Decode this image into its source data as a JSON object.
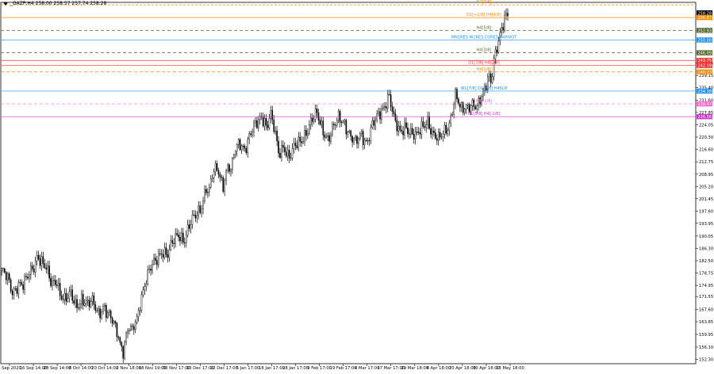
{
  "header": {
    "symbol_info": "_GAZP,H4  258.00 258.57 257.74 258.28"
  },
  "chart_data": {
    "type": "candlestick",
    "symbol": "_GAZP",
    "timeframe": "H4",
    "ohlc_header": [
      258.0,
      258.57,
      257.74,
      258.28
    ],
    "ylim": [
      151.0,
      261.5
    ],
    "y_ticks": [
      152.3,
      156.1,
      159.95,
      163.85,
      167.6,
      171.55,
      174.95,
      178.75,
      182.5,
      186.3,
      190.05,
      193.95,
      197.6,
      201.45,
      205.2,
      208.95,
      212.75,
      216.6,
      220.3,
      224.05,
      227.85,
      231.6,
      235.4,
      239.15,
      242.95
    ],
    "x_labels": [
      "4 Sep 2020",
      "16 Sep 14:00",
      "28 Sep 14:00",
      "8 Oct 14:00",
      "20 Oct 14:00",
      "2 Nov 18:00",
      "18 Nov 19:00",
      "30 Nov 17:00",
      "10 Dec 17:00",
      "22 Dec 17:00",
      "5 Jan 17:00",
      "18 Jan 17:00",
      "28 Jan 17:00",
      "9 Feb 17:00",
      "19 Feb 17:00",
      "4 Mar 17:00",
      "17 Mar 17:00",
      "29 Mar 18:00",
      "8 Apr 18:00",
      "20 Apr 18:00",
      "30 Apr 18:00",
      "13 May 18:00"
    ],
    "price_path": [
      [
        0,
        179.5
      ],
      [
        2,
        177
      ],
      [
        4,
        172.5
      ],
      [
        6,
        176
      ],
      [
        8,
        175
      ],
      [
        10,
        178
      ],
      [
        12,
        181.5
      ],
      [
        13,
        185
      ],
      [
        14,
        183
      ],
      [
        16,
        180
      ],
      [
        18,
        175
      ],
      [
        20,
        177
      ],
      [
        21,
        173
      ],
      [
        23,
        170
      ],
      [
        25,
        172
      ],
      [
        27,
        169
      ],
      [
        29,
        171
      ],
      [
        31,
        168.5
      ],
      [
        33,
        170
      ],
      [
        35,
        167
      ],
      [
        37,
        168.5
      ],
      [
        38,
        166
      ],
      [
        40,
        164
      ],
      [
        42,
        161
      ],
      [
        43,
        157
      ],
      [
        44,
        155
      ],
      [
        45,
        159
      ],
      [
        46,
        162
      ],
      [
        47,
        160
      ],
      [
        48,
        163
      ],
      [
        49,
        165
      ],
      [
        50,
        170
      ],
      [
        52,
        176
      ],
      [
        54,
        180
      ],
      [
        56,
        183
      ],
      [
        58,
        186
      ],
      [
        60,
        184
      ],
      [
        62,
        188
      ],
      [
        64,
        191
      ],
      [
        66,
        189
      ],
      [
        68,
        193
      ],
      [
        70,
        196
      ],
      [
        72,
        199
      ],
      [
        74,
        205
      ],
      [
        75,
        203
      ],
      [
        76,
        208
      ],
      [
        78,
        211
      ],
      [
        80,
        206
      ],
      [
        82,
        212
      ],
      [
        83,
        209
      ],
      [
        84,
        215
      ],
      [
        86,
        219
      ],
      [
        88,
        217
      ],
      [
        90,
        221
      ],
      [
        92,
        224
      ],
      [
        94,
        227
      ],
      [
        95,
        226
      ],
      [
        96,
        223
      ],
      [
        97,
        228
      ],
      [
        98,
        224
      ],
      [
        99,
        221
      ],
      [
        100,
        215
      ],
      [
        102,
        218
      ],
      [
        104,
        214
      ],
      [
        106,
        217
      ],
      [
        108,
        219
      ],
      [
        110,
        222
      ],
      [
        112,
        225
      ],
      [
        114,
        227
      ],
      [
        116,
        223
      ],
      [
        118,
        220
      ],
      [
        120,
        223
      ],
      [
        122,
        226
      ],
      [
        124,
        225
      ],
      [
        126,
        221
      ],
      [
        128,
        218
      ],
      [
        130,
        221
      ],
      [
        132,
        219
      ],
      [
        134,
        224
      ],
      [
        136,
        226
      ],
      [
        138,
        229
      ],
      [
        140,
        234
      ],
      [
        141,
        230
      ],
      [
        142,
        225
      ],
      [
        144,
        221
      ],
      [
        146,
        224
      ],
      [
        148,
        222
      ],
      [
        150,
        220
      ],
      [
        152,
        223
      ],
      [
        154,
        226
      ],
      [
        156,
        221
      ],
      [
        158,
        219
      ],
      [
        160,
        222
      ],
      [
        162,
        225
      ],
      [
        163,
        229
      ],
      [
        164,
        233
      ],
      [
        165,
        231
      ],
      [
        166,
        228
      ],
      [
        168,
        230
      ],
      [
        170,
        231
      ],
      [
        172,
        229
      ],
      [
        174,
        233
      ],
      [
        175,
        236
      ],
      [
        176,
        240
      ],
      [
        177,
        238
      ],
      [
        178,
        244
      ],
      [
        179,
        247
      ],
      [
        180,
        250
      ],
      [
        181,
        253
      ],
      [
        182,
        257
      ],
      [
        183,
        258.3
      ]
    ],
    "axis_tags": [
      {
        "value": 258.28,
        "color": "#000000"
      },
      {
        "value": 256.87,
        "color": "#ff8c00"
      },
      {
        "value": 252.93,
        "color": "#556b2f"
      },
      {
        "value": 250.0,
        "color": "#1e90ff"
      },
      {
        "value": 246.09,
        "color": "#556b2f"
      },
      {
        "value": 243.75,
        "color": "#ff3333"
      },
      {
        "value": 242.19,
        "color": "#ff3333"
      },
      {
        "value": 240.23,
        "color": "#ff8c00"
      },
      {
        "value": 234.38,
        "color": "#1e90ff"
      },
      {
        "value": 230.47,
        "color": "#ff66cc"
      },
      {
        "value": 226.56,
        "color": "#cc33cc"
      }
    ],
    "levels": [
      {
        "value": 260.74,
        "label": "H4[7/8]",
        "color": "#ff8c00",
        "dash": "3,2"
      },
      {
        "value": 256.87,
        "label": "D1[+1/8] H4[6/8]",
        "color": "#ff8c00",
        "dash": ""
      },
      {
        "value": 252.93,
        "label": "H4[5/8]",
        "color": "#556b2f",
        "dash": "4,3"
      },
      {
        "value": 250.0,
        "label": "MN1RES W1RES D1RES H4PIVOT",
        "color": "#1e90ff",
        "dash": ""
      },
      {
        "value": 246.09,
        "label": "H4[3/8]",
        "color": "#556b2f",
        "dash": "4,3"
      },
      {
        "value": 243.75,
        "label": "",
        "color": "#ff3333",
        "dash": ""
      },
      {
        "value": 242.19,
        "label": "D1[7/8] H4[2/8]",
        "color": "#ff3333",
        "dash": ""
      },
      {
        "value": 240.23,
        "label": "H4[1/8]",
        "color": "#ff8c00",
        "dash": "4,3"
      },
      {
        "value": 234.38,
        "label": "W1[7/8] D1[6/8] H4SUP",
        "color": "#1e90ff",
        "dash": ""
      },
      {
        "value": 230.47,
        "label": "H4[-1/8]",
        "color": "#ff66cc",
        "dash": "4,3"
      },
      {
        "value": 226.56,
        "label": "D1[5/8] H4[-2/8]",
        "color": "#cc33cc",
        "dash": ""
      }
    ]
  }
}
